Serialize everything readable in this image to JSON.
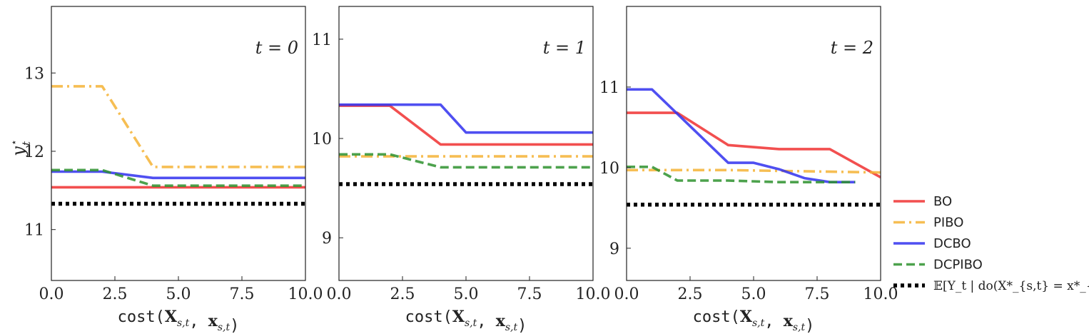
{
  "figure": {
    "ylabel": "y_t^⋆",
    "xlabel": "cost(X_{s,t}, x_{s,t})"
  },
  "legend": {
    "placement": "lower-right outside",
    "entries": [
      {
        "label": "BO",
        "color": "#f03030",
        "style": "solid"
      },
      {
        "label": "PIBO",
        "color": "#f5b335",
        "style": "dashdot"
      },
      {
        "label": "DCBO",
        "color": "#3030ee",
        "style": "solid"
      },
      {
        "label": "DCPIBO",
        "color": "#2e922e",
        "style": "dashed"
      },
      {
        "label": "𝔼[Y_t | do(X*_{s,t} = x*_{s,t})]",
        "color": "#000000",
        "style": "dotted"
      }
    ]
  },
  "chart_data": [
    {
      "type": "line",
      "panel_label": "t = 0",
      "xlabel": "cost(X_{s,t}, x_{s,t})",
      "ylabel": "y_t^⋆",
      "xlim": [
        0,
        10
      ],
      "ylim": [
        10.35,
        13.85
      ],
      "xticks": [
        "0.0",
        "2.5",
        "5.0",
        "7.5",
        "10.0"
      ],
      "yticks": [
        "11",
        "12",
        "13"
      ],
      "xticks_values": [
        0,
        2.5,
        5,
        7.5,
        10
      ],
      "yticks_values": [
        11,
        12,
        13
      ],
      "series": [
        {
          "name": "BO",
          "x": [
            0,
            10
          ],
          "y": [
            11.54,
            11.54
          ]
        },
        {
          "name": "PIBO",
          "x": [
            0,
            2,
            4,
            10
          ],
          "y": [
            12.83,
            12.83,
            11.8,
            11.8
          ]
        },
        {
          "name": "DCBO",
          "x": [
            0,
            2,
            4,
            10
          ],
          "y": [
            11.74,
            11.74,
            11.66,
            11.66
          ]
        },
        {
          "name": "DCPIBO",
          "x": [
            0,
            2,
            4,
            10
          ],
          "y": [
            11.76,
            11.76,
            11.56,
            11.56
          ]
        },
        {
          "name": "𝔼[Y_t | do(X*_{s,t} = x*_{s,t})]",
          "x": [
            0,
            10
          ],
          "y": [
            11.33,
            11.33
          ]
        }
      ]
    },
    {
      "type": "line",
      "panel_label": "t = 1",
      "xlabel": "cost(X_{s,t}, x_{s,t})",
      "xlim": [
        0,
        10
      ],
      "ylim": [
        8.57,
        11.33
      ],
      "xticks": [
        "0.0",
        "2.5",
        "5.0",
        "7.5",
        "10.0"
      ],
      "yticks": [
        "9",
        "10",
        "11"
      ],
      "xticks_values": [
        0,
        2.5,
        5,
        7.5,
        10
      ],
      "yticks_values": [
        9,
        10,
        11
      ],
      "series": [
        {
          "name": "BO",
          "x": [
            0,
            2,
            4,
            10
          ],
          "y": [
            10.33,
            10.33,
            9.94,
            9.94
          ]
        },
        {
          "name": "PIBO",
          "x": [
            0,
            10
          ],
          "y": [
            9.82,
            9.82
          ]
        },
        {
          "name": "DCBO",
          "x": [
            0,
            4,
            5,
            10
          ],
          "y": [
            10.34,
            10.34,
            10.06,
            10.06
          ]
        },
        {
          "name": "DCPIBO",
          "x": [
            0,
            2,
            4,
            10
          ],
          "y": [
            9.84,
            9.84,
            9.71,
            9.71
          ]
        },
        {
          "name": "𝔼[Y_t | do(X*_{s,t} = x*_{s,t})]",
          "x": [
            0,
            10
          ],
          "y": [
            9.54,
            9.54
          ]
        }
      ]
    },
    {
      "type": "line",
      "panel_label": "t = 2",
      "xlabel": "cost(X_{s,t}, x_{s,t})",
      "xlim": [
        0,
        10
      ],
      "ylim": [
        8.6,
        12.0
      ],
      "xticks": [
        "0.0",
        "2.5",
        "5.0",
        "7.5",
        "10.0"
      ],
      "yticks": [
        "9",
        "10",
        "11"
      ],
      "xticks_values": [
        0,
        2.5,
        5,
        7.5,
        10
      ],
      "yticks_values": [
        9,
        10,
        11
      ],
      "series": [
        {
          "name": "BO",
          "x": [
            0,
            2,
            4,
            6,
            8,
            10
          ],
          "y": [
            10.68,
            10.68,
            10.28,
            10.23,
            10.23,
            9.88
          ]
        },
        {
          "name": "PIBO",
          "x": [
            0,
            4,
            10
          ],
          "y": [
            9.97,
            9.97,
            9.94
          ]
        },
        {
          "name": "DCBO",
          "x": [
            0,
            1,
            4,
            5,
            6,
            7,
            8,
            9
          ],
          "y": [
            10.97,
            10.97,
            10.06,
            10.06,
            9.98,
            9.87,
            9.82,
            9.82
          ]
        },
        {
          "name": "DCPIBO",
          "x": [
            0,
            1,
            2,
            4,
            6,
            8,
            9
          ],
          "y": [
            10.01,
            10.01,
            9.84,
            9.84,
            9.82,
            9.82,
            9.82
          ]
        },
        {
          "name": "𝔼[Y_t | do(X*_{s,t} = x*_{s,t})]",
          "x": [
            0,
            10
          ],
          "y": [
            9.54,
            9.54
          ]
        }
      ]
    }
  ]
}
